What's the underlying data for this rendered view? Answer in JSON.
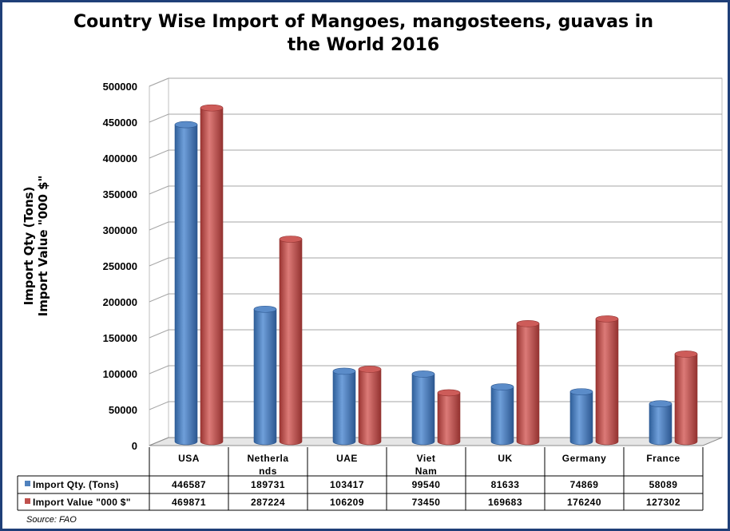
{
  "title_line1": "Country Wise Import of Mangoes, mangosteens, guavas in",
  "title_line2": "the World 2016",
  "ylabel_line1": "Import Qty (Tons)",
  "ylabel_line2": "Import Value \"000 $\"",
  "source": "Source: FAO",
  "colors": {
    "blue": "#4f81bd",
    "red": "#c0504d",
    "frame": "#1f3f78"
  },
  "chart_data": {
    "type": "bar",
    "title": "Country Wise Import of Mangoes, mangosteens, guavas in the World 2016",
    "ylabel": "Import Qty (Tons) / Import Value \"000 $\"",
    "ylim": [
      0,
      500000
    ],
    "yticks": [
      0,
      50000,
      100000,
      150000,
      200000,
      250000,
      300000,
      350000,
      400000,
      450000,
      500000
    ],
    "categories": [
      "USA",
      "Netherla nds",
      "UAE",
      "Viet Nam",
      "UK",
      "Germany",
      "France"
    ],
    "series": [
      {
        "name": "Import Qty. (Tons)",
        "values": [
          446587,
          189731,
          103417,
          99540,
          81633,
          74869,
          58089
        ]
      },
      {
        "name": "Import Value \"000 $\"",
        "values": [
          469871,
          287224,
          106209,
          73450,
          169683,
          176240,
          127302
        ]
      }
    ],
    "grid": true,
    "legend": "data-table"
  }
}
